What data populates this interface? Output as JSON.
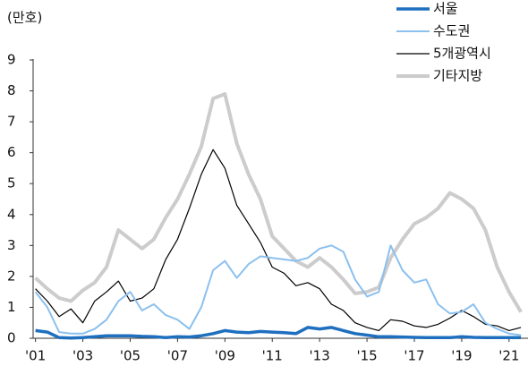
{
  "chart_data": {
    "type": "line",
    "y_label": "(만호)",
    "x": [
      2001.0,
      2001.5,
      2002.0,
      2002.5,
      2003.0,
      2003.5,
      2004.0,
      2004.5,
      2005.0,
      2005.5,
      2006.0,
      2006.5,
      2007.0,
      2007.5,
      2008.0,
      2008.5,
      2009.0,
      2009.5,
      2010.0,
      2010.5,
      2011.0,
      2011.5,
      2012.0,
      2012.5,
      2013.0,
      2013.5,
      2014.0,
      2014.5,
      2015.0,
      2015.5,
      2016.0,
      2016.5,
      2017.0,
      2017.5,
      2018.0,
      2018.5,
      2019.0,
      2019.5,
      2020.0,
      2020.5,
      2021.0,
      2021.5
    ],
    "series": [
      {
        "name": "서울",
        "color": "#1f6fbf",
        "width": 3.5,
        "values": [
          0.25,
          0.2,
          0.02,
          0.01,
          0.02,
          0.05,
          0.08,
          0.08,
          0.08,
          0.06,
          0.05,
          0.02,
          0.05,
          0.04,
          0.08,
          0.15,
          0.25,
          0.2,
          0.18,
          0.22,
          0.2,
          0.18,
          0.15,
          0.35,
          0.3,
          0.35,
          0.25,
          0.15,
          0.1,
          0.05,
          0.05,
          0.04,
          0.03,
          0.02,
          0.02,
          0.02,
          0.05,
          0.03,
          0.02,
          0.02,
          0.02,
          0.02
        ]
      },
      {
        "name": "수도권",
        "color": "#8cc0ee",
        "width": 2,
        "values": [
          1.5,
          1.0,
          0.2,
          0.15,
          0.15,
          0.3,
          0.6,
          1.2,
          1.5,
          0.9,
          1.1,
          0.75,
          0.6,
          0.3,
          1.0,
          2.2,
          2.5,
          1.95,
          2.4,
          2.65,
          2.6,
          2.55,
          2.5,
          2.6,
          2.9,
          3.0,
          2.8,
          1.9,
          1.35,
          1.5,
          3.0,
          2.2,
          1.8,
          1.9,
          1.1,
          0.8,
          0.85,
          1.1,
          0.5,
          0.3,
          0.15,
          0.1
        ]
      },
      {
        "name": "5개광역시",
        "color": "#000000",
        "width": 1.2,
        "values": [
          1.6,
          1.2,
          0.7,
          0.95,
          0.5,
          1.2,
          1.5,
          1.85,
          1.2,
          1.3,
          1.6,
          2.55,
          3.2,
          4.2,
          5.3,
          6.1,
          5.5,
          4.3,
          3.7,
          3.1,
          2.3,
          2.1,
          1.7,
          1.8,
          1.6,
          1.1,
          0.9,
          0.5,
          0.35,
          0.25,
          0.6,
          0.55,
          0.4,
          0.35,
          0.45,
          0.65,
          0.9,
          0.7,
          0.45,
          0.4,
          0.25,
          0.35
        ]
      },
      {
        "name": "기타지방",
        "color": "#cccccc",
        "width": 4,
        "values": [
          1.95,
          1.6,
          1.3,
          1.2,
          1.55,
          1.8,
          2.3,
          3.5,
          3.2,
          2.9,
          3.2,
          3.9,
          4.5,
          5.3,
          6.2,
          7.75,
          7.9,
          6.3,
          5.3,
          4.5,
          3.3,
          2.9,
          2.5,
          2.3,
          2.6,
          2.3,
          1.9,
          1.45,
          1.5,
          1.65,
          2.6,
          3.2,
          3.7,
          3.9,
          4.2,
          4.7,
          4.5,
          4.2,
          3.5,
          2.3,
          1.5,
          0.85
        ]
      }
    ],
    "xlim": [
      2000.9,
      2021.8
    ],
    "xticks": [
      {
        "value": 2001,
        "label": "'01"
      },
      {
        "value": 2003,
        "label": "'03"
      },
      {
        "value": 2005,
        "label": "'05"
      },
      {
        "value": 2007,
        "label": "'07"
      },
      {
        "value": 2009,
        "label": "'09"
      },
      {
        "value": 2011,
        "label": "'11"
      },
      {
        "value": 2013,
        "label": "'13"
      },
      {
        "value": 2015,
        "label": "'15"
      },
      {
        "value": 2017,
        "label": "'17"
      },
      {
        "value": 2019,
        "label": "'19"
      },
      {
        "value": 2021,
        "label": "'21"
      }
    ],
    "ylim": [
      0,
      9
    ],
    "yticks": [
      0,
      1,
      2,
      3,
      4,
      5,
      6,
      7,
      8,
      9
    ]
  }
}
